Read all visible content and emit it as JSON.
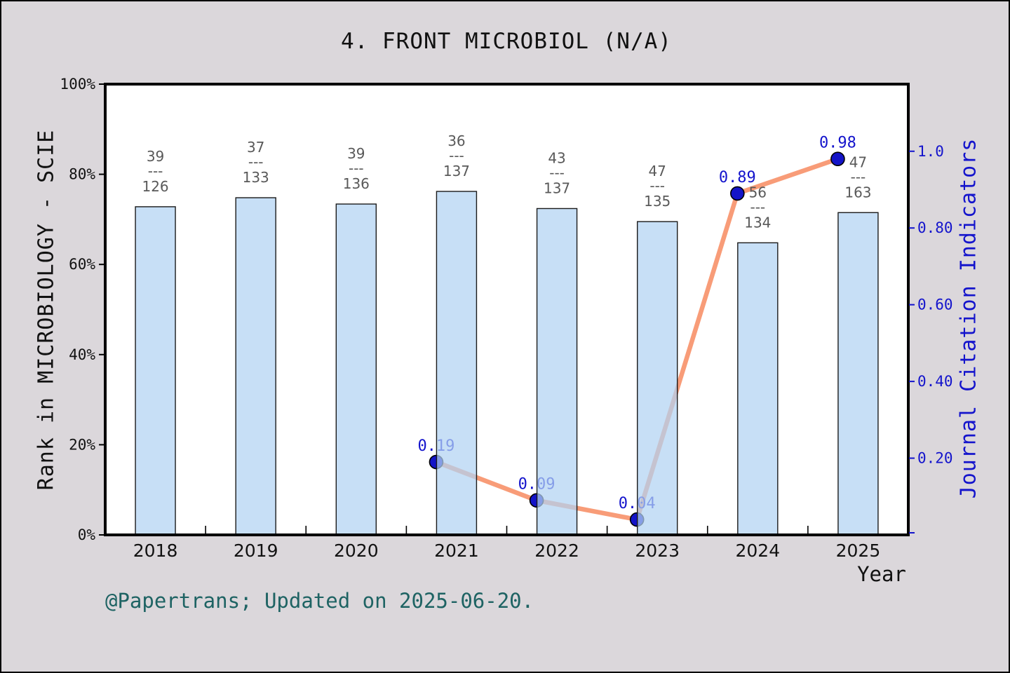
{
  "title": "4. FRONT MICROBIOL (N/A)",
  "footer": "@Papertrans; Updated on 2025-06-20.",
  "colors": {
    "page_background": "#DBD7DB",
    "plot_background": "#FFFFFF",
    "bar_fill": "#B1D3F2",
    "bar_fill_opacity": 0.72,
    "bar_edge": "#1A1A1A",
    "line": "#F89C78",
    "marker_fill": "#1414C8",
    "marker_edge": "#000000",
    "blue_text": "#1414CC",
    "gray_text": "#595959",
    "teal_text": "#1E6363",
    "axis": "#000000"
  },
  "chart_data": {
    "type": "bar",
    "title": "4. FRONT MICROBIOL (N/A)",
    "categories": [
      "2018",
      "2019",
      "2020",
      "2021",
      "2022",
      "2023",
      "2024",
      "2025"
    ],
    "x": {
      "label": "Year"
    },
    "y_left": {
      "label": "Rank in MICROBIOLOGY - SCIE",
      "ticks": [
        "100%",
        "80%",
        "60%",
        "40%",
        "20%",
        "0%"
      ],
      "tick_values": [
        100,
        80,
        60,
        40,
        20,
        0
      ],
      "range": [
        0,
        100
      ],
      "grid": false
    },
    "y_right": {
      "label": "Journal Citation Indicators",
      "ticks": [
        "1.0",
        "0.80",
        "0.60",
        "0.40",
        "0.20"
      ],
      "tick_values": [
        1.0,
        0.8,
        0.6,
        0.4,
        0.2
      ],
      "range": [
        0,
        1.175
      ]
    },
    "series": [
      {
        "name": "Rank in MICROBIOLOGY - SCIE",
        "type": "bar",
        "axis": "left",
        "values_percent": [
          72.8,
          74.8,
          73.4,
          76.2,
          72.4,
          69.5,
          64.8,
          71.5
        ],
        "rank_labels": [
          {
            "rank": "39",
            "total": "126"
          },
          {
            "rank": "37",
            "total": "133"
          },
          {
            "rank": "39",
            "total": "136"
          },
          {
            "rank": "36",
            "total": "137"
          },
          {
            "rank": "43",
            "total": "137"
          },
          {
            "rank": "47",
            "total": "135"
          },
          {
            "rank": "56",
            "total": "134"
          },
          {
            "rank": "47",
            "total": "163"
          }
        ],
        "label_separator": "---"
      },
      {
        "name": "Journal Citation Indicators",
        "type": "line",
        "axis": "right",
        "x": [
          "2021",
          "2022",
          "2023",
          "2024",
          "2025"
        ],
        "values": [
          0.19,
          0.09,
          0.04,
          0.89,
          0.98
        ],
        "point_labels": [
          "0.19",
          "0.09",
          "0.04",
          "0.89",
          "0.98"
        ]
      }
    ],
    "legend": "none"
  }
}
